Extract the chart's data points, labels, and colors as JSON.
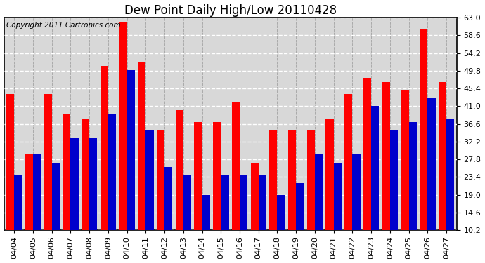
{
  "title": "Dew Point Daily High/Low 20110428",
  "copyright": "Copyright 2011 Cartronics.com",
  "dates": [
    "04/04",
    "04/05",
    "04/06",
    "04/07",
    "04/08",
    "04/09",
    "04/10",
    "04/11",
    "04/12",
    "04/13",
    "04/14",
    "04/15",
    "04/16",
    "04/17",
    "04/18",
    "04/19",
    "04/20",
    "04/21",
    "04/22",
    "04/23",
    "04/24",
    "04/25",
    "04/26",
    "04/27"
  ],
  "highs": [
    44,
    29,
    44,
    39,
    38,
    51,
    62,
    52,
    35,
    40,
    37,
    37,
    42,
    27,
    35,
    35,
    35,
    38,
    44,
    48,
    47,
    45,
    60,
    47
  ],
  "lows": [
    24,
    29,
    27,
    33,
    33,
    39,
    50,
    35,
    26,
    24,
    19,
    24,
    24,
    24,
    19,
    22,
    29,
    27,
    29,
    41,
    35,
    37,
    43,
    38
  ],
  "bar_color_high": "#ff0000",
  "bar_color_low": "#0000cc",
  "background_color": "#ffffff",
  "plot_bg_color": "#d8d8d8",
  "grid_color_h": "#ffffff",
  "grid_color_v": "#aaaaaa",
  "ymin": 10.2,
  "ymax": 63.0,
  "yticks": [
    10.2,
    14.6,
    19.0,
    23.4,
    27.8,
    32.2,
    36.6,
    41.0,
    45.4,
    49.8,
    54.2,
    58.6,
    63.0
  ],
  "bar_width": 0.42,
  "title_fontsize": 12,
  "tick_fontsize": 8,
  "copyright_fontsize": 7.5
}
